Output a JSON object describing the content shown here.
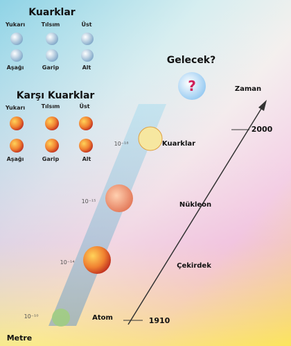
{
  "quarks": {
    "title": "Kuarklar",
    "top_labels": [
      "Yukarı",
      "Tılsım",
      "Üst"
    ],
    "bottom_labels": [
      "Aşağı",
      "Garip",
      "Alt"
    ]
  },
  "antiquarks": {
    "title": "Karşı Kuarklar",
    "top_labels": [
      "Yukarı",
      "Tılsım",
      "Üst"
    ],
    "bottom_labels": [
      "Aşağı",
      "Garip",
      "Alt"
    ]
  },
  "future": {
    "label": "Gelecek?",
    "symbol": "?"
  },
  "time_axis": {
    "label": "Zaman",
    "ticks": [
      "2000",
      "1910"
    ]
  },
  "levels": [
    {
      "label": "Kuarklar",
      "scale": "10⁻¹⁸"
    },
    {
      "label": "Nükleon",
      "scale": "10⁻¹⁵"
    },
    {
      "label": "Çekirdek",
      "scale": "10⁻¹⁴"
    },
    {
      "label": "Atom",
      "scale": "10⁻¹⁰"
    }
  ],
  "unit": "Metre"
}
